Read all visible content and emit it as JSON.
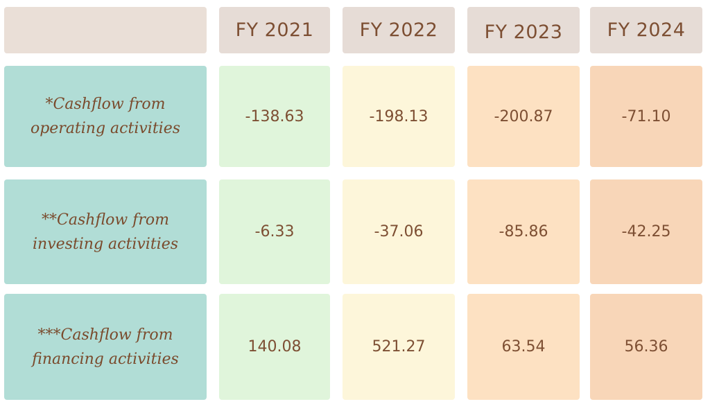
{
  "chart_data": {
    "type": "table",
    "columns": [
      "FY 2021",
      "FY 2022",
      "FY 2023",
      "FY 2024"
    ],
    "rows": [
      {
        "label_line1": "*Cashflow from",
        "label_line2": "operating activities",
        "values": [
          "-138.63",
          "-198.13",
          "-200.87",
          "-71.10"
        ]
      },
      {
        "label_line1": "**Cashflow from",
        "label_line2": "investing activities",
        "values": [
          "-6.33",
          "-37.06",
          "-85.86",
          "-42.25"
        ]
      },
      {
        "label_line1": "***Cashflow from",
        "label_line2": "financing activities",
        "values": [
          "140.08",
          "521.27",
          "63.54",
          "56.36"
        ]
      }
    ]
  },
  "colors": {
    "label_background": "#b1ddd6",
    "header_background": "#e6dcd6",
    "fy2021_background": "#e0f5db",
    "fy2022_background": "#fdf6da",
    "fy2023_background": "#fde1c2",
    "fy2024_background": "#f8d6b8",
    "text": "#7d4f33"
  }
}
